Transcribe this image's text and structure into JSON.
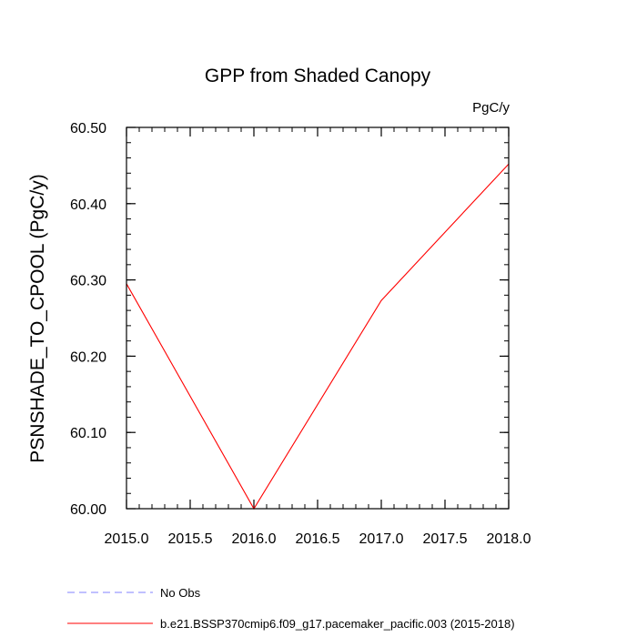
{
  "chart_data": {
    "type": "line",
    "title": "GPP from Shaded Canopy",
    "units_label": "PgC/y",
    "xlabel": "",
    "ylabel": "PSNSHADE_TO_CPOOL  (PgC/y)",
    "xlim": [
      2015.0,
      2018.0
    ],
    "ylim": [
      60.0,
      60.5
    ],
    "x_ticks": [
      2015.0,
      2015.5,
      2016.0,
      2016.5,
      2017.0,
      2017.5,
      2018.0
    ],
    "x_tick_labels": [
      "2015.0",
      "2015.5",
      "2016.0",
      "2016.5",
      "2017.0",
      "2017.5",
      "2018.0"
    ],
    "y_ticks": [
      60.0,
      60.1,
      60.2,
      60.3,
      60.4,
      60.5
    ],
    "y_tick_labels": [
      "60.00",
      "60.10",
      "60.20",
      "60.30",
      "60.40",
      "60.50"
    ],
    "grid": false,
    "legend_position": "bottom",
    "series": [
      {
        "name": "No Obs",
        "color": "#8080ff",
        "style": "dashed",
        "x": [],
        "values": []
      },
      {
        "name": "b.e21.BSSP370cmip6.f09_g17.pacemaker_pacific.003 (2015-2018)",
        "color": "#ff0000",
        "style": "solid",
        "x": [
          2015.0,
          2016.0,
          2017.0,
          2018.0
        ],
        "values": [
          60.295,
          60.0,
          60.273,
          60.452
        ]
      }
    ]
  }
}
